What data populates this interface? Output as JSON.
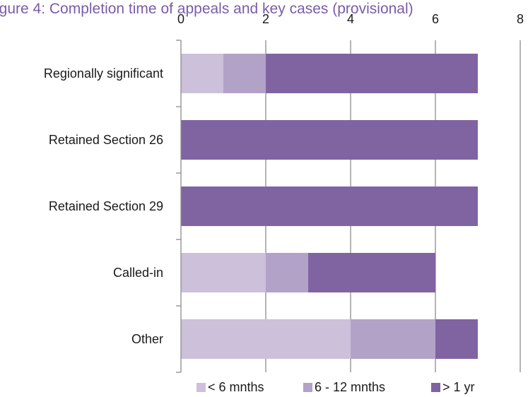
{
  "chart_data": {
    "type": "bar",
    "orientation": "horizontal",
    "stacked": true,
    "title": "igure 4: Completion time of appeals and key cases (provisional)",
    "categories": [
      "Regionally significant",
      "Retained Section 26",
      "Retained Section 29",
      "Called-in",
      "Other"
    ],
    "series": [
      {
        "name": "< 6 mnths",
        "color": "#ccc0da",
        "values": [
          1,
          0,
          0,
          2,
          4
        ]
      },
      {
        "name": "6 - 12 mnths",
        "color": "#b3a2c7",
        "values": [
          1,
          0,
          0,
          1,
          2
        ]
      },
      {
        "name": "> 1 yr",
        "color": "#8064a2",
        "values": [
          5,
          7,
          7,
          3,
          1
        ]
      }
    ],
    "xlim": [
      0,
      8
    ],
    "xticks": [
      "0",
      "2",
      "4",
      "6",
      "8"
    ],
    "xaxis_position": "top",
    "gridlines": true,
    "legend_position": "bottom"
  }
}
